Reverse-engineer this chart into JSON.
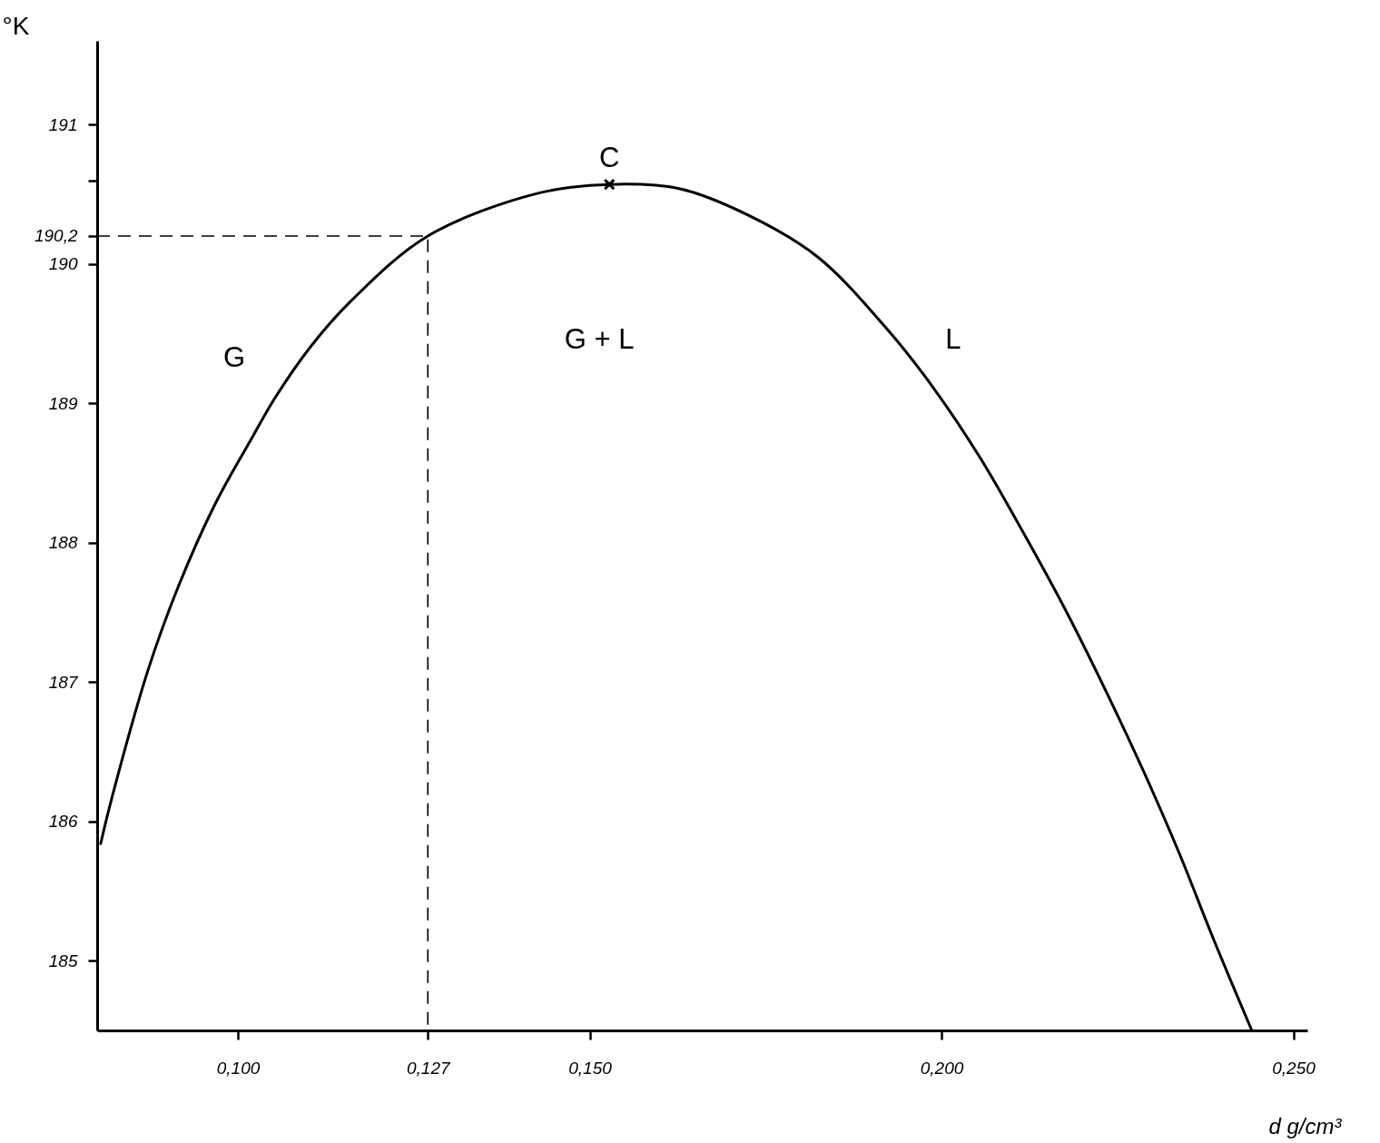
{
  "chart_data": {
    "type": "line",
    "xlabel": "d g/cm³",
    "ylabel": "°K",
    "xlim": [
      0.08,
      0.252
    ],
    "ylim": [
      184.5,
      191.6
    ],
    "xticks": [
      {
        "value": 0.1,
        "label": "0,100"
      },
      {
        "value": 0.127,
        "label": "0,127"
      },
      {
        "value": 0.15,
        "label": "0,150"
      },
      {
        "value": 0.2,
        "label": "0,200"
      },
      {
        "value": 0.25,
        "label": "0,250"
      }
    ],
    "yticks": [
      185,
      186,
      187,
      188,
      189,
      190,
      {
        "value": 190.2,
        "label": "190,2"
      },
      {
        "value": 190.6,
        "label": null
      },
      191
    ],
    "series": [
      {
        "color": "#000000",
        "x": [
          0.0805,
          0.0821,
          0.0872,
          0.0915,
          0.0967,
          0.1021,
          0.1053,
          0.1104,
          0.116,
          0.127,
          0.1429,
          0.1528,
          0.1627,
          0.1725,
          0.1824,
          0.1923,
          0.199,
          0.2056,
          0.2122,
          0.218,
          0.2238,
          0.2288,
          0.2338,
          0.2387,
          0.2441
        ],
        "values": [
          185.84,
          186.17,
          187.08,
          187.68,
          188.27,
          188.76,
          189.04,
          189.41,
          189.73,
          190.2,
          190.51,
          190.57,
          190.54,
          190.35,
          190.05,
          189.53,
          189.1,
          188.6,
          188.02,
          187.48,
          186.89,
          186.35,
          185.77,
          185.15,
          184.5
        ]
      },
      {
        "line_style": "dashed",
        "color": "#000000",
        "x": [
          0.08,
          0.127,
          0.127
        ],
        "values": [
          190.2,
          190.2,
          184.5
        ]
      },
      {
        "type": "scatter",
        "marker": "cross",
        "color": "#000000",
        "x": [
          0.1528
        ],
        "values": [
          190.57
        ]
      }
    ],
    "annotations": [
      {
        "text": "C",
        "x": 0.1528,
        "y": 190.57
      },
      "G",
      "G + L",
      "L"
    ]
  }
}
